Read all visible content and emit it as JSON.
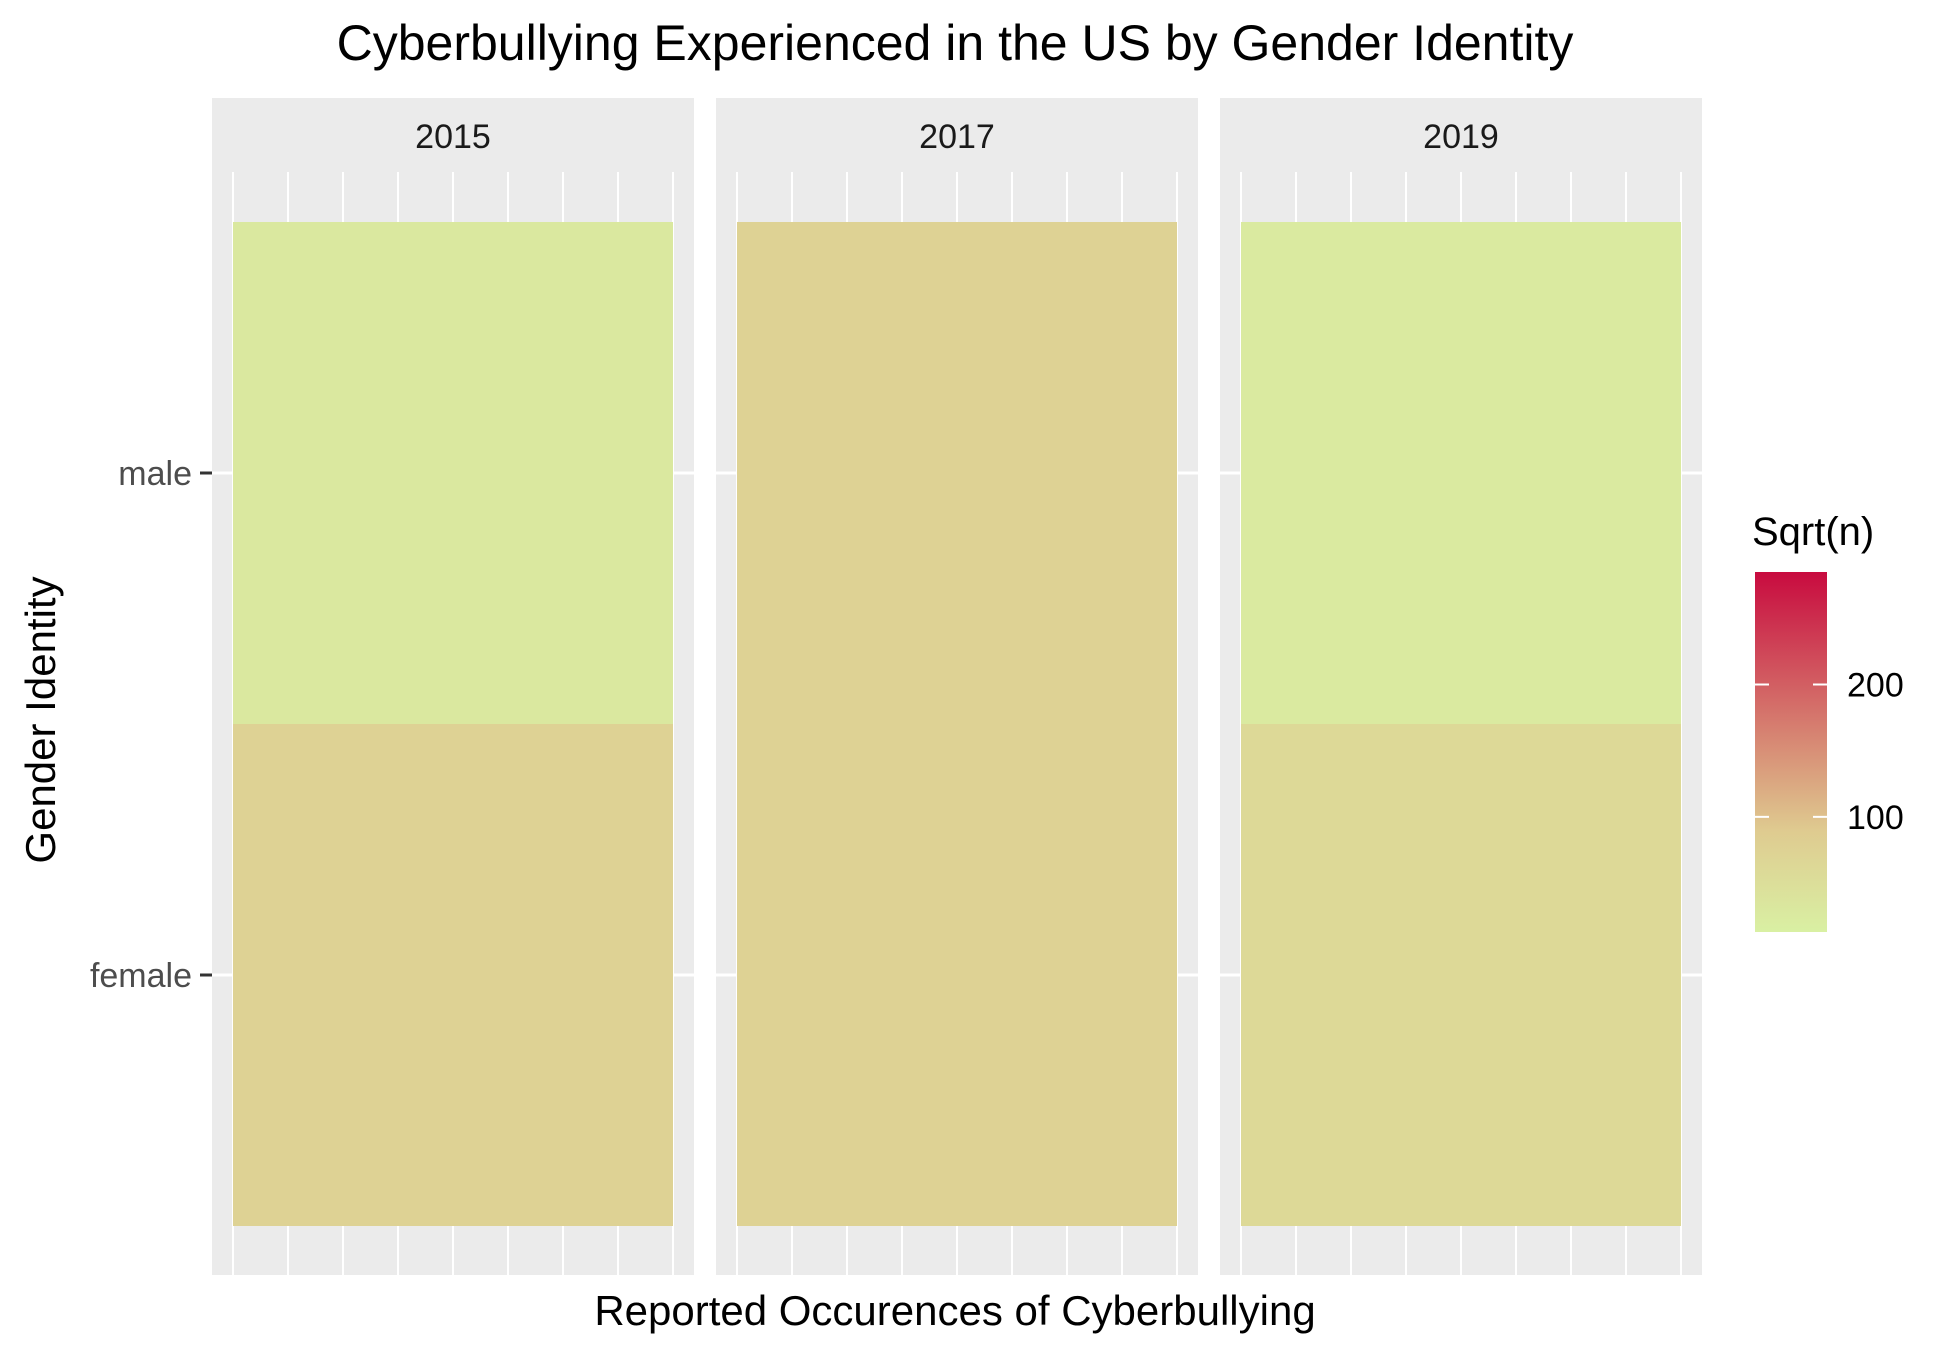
{
  "chart_data": {
    "type": "heatmap",
    "title": "Cyberbullying Experienced in the US by Gender Identity",
    "xlabel": "Reported Occurences of Cyberbullying",
    "ylabel": "Gender Identity",
    "facets": [
      "2015",
      "2017",
      "2019"
    ],
    "y_categories": [
      "female",
      "male"
    ],
    "cells": [
      {
        "facet": "2015",
        "gender": "male",
        "value": 30
      },
      {
        "facet": "2015",
        "gender": "female",
        "value": 75
      },
      {
        "facet": "2017",
        "gender": "male",
        "value": 75
      },
      {
        "facet": "2017",
        "gender": "female",
        "value": 75
      },
      {
        "facet": "2019",
        "gender": "male",
        "value": 25
      },
      {
        "facet": "2019",
        "gender": "female",
        "value": 60
      }
    ],
    "legend": {
      "title": "Sqrt(n)",
      "ticks": [
        100,
        200
      ],
      "range": [
        13,
        285
      ],
      "colors": {
        "low": "#D9F0A3",
        "mid": "#DFCB90",
        "high": "#C80B3F"
      },
      "placement": "right"
    },
    "grid": true,
    "background": "#EBEBEB",
    "strip_background": "#EBEBEB"
  }
}
